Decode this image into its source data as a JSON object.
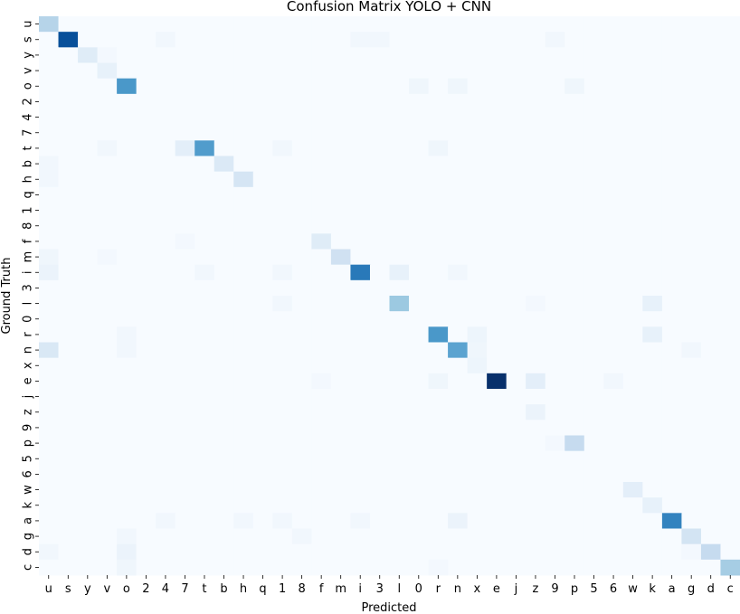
{
  "chart_data": {
    "type": "heatmap",
    "title": "Confusion Matrix YOLO + CNN",
    "xlabel": "Predicted",
    "ylabel": "Ground Truth",
    "labels": [
      "u",
      "s",
      "y",
      "v",
      "o",
      "2",
      "4",
      "7",
      "t",
      "b",
      "h",
      "q",
      "1",
      "8",
      "f",
      "m",
      "i",
      "3",
      "l",
      "0",
      "r",
      "n",
      "x",
      "e",
      "j",
      "z",
      "9",
      "p",
      "5",
      "6",
      "w",
      "k",
      "a",
      "g",
      "d",
      "c"
    ],
    "colormap": "Blues",
    "value_range": [
      0,
      1
    ],
    "colorbar": false,
    "grid": false,
    "colors": {
      "low": "#f7fbff",
      "high": "#08306b"
    },
    "cells": [
      {
        "row": "u",
        "col": "u",
        "v": 0.3
      },
      {
        "row": "s",
        "col": "s",
        "v": 0.88
      },
      {
        "row": "s",
        "col": "4",
        "v": 0.03
      },
      {
        "row": "s",
        "col": "i",
        "v": 0.03
      },
      {
        "row": "s",
        "col": "3",
        "v": 0.03
      },
      {
        "row": "s",
        "col": "9",
        "v": 0.03
      },
      {
        "row": "y",
        "col": "y",
        "v": 0.12
      },
      {
        "row": "y",
        "col": "v",
        "v": 0.02
      },
      {
        "row": "v",
        "col": "v",
        "v": 0.08
      },
      {
        "row": "o",
        "col": "o",
        "v": 0.6
      },
      {
        "row": "o",
        "col": "0",
        "v": 0.04
      },
      {
        "row": "o",
        "col": "n",
        "v": 0.04
      },
      {
        "row": "o",
        "col": "p",
        "v": 0.04
      },
      {
        "row": "t",
        "col": "7",
        "v": 0.1
      },
      {
        "row": "t",
        "col": "t",
        "v": 0.58
      },
      {
        "row": "t",
        "col": "v",
        "v": 0.03
      },
      {
        "row": "t",
        "col": "1",
        "v": 0.03
      },
      {
        "row": "t",
        "col": "r",
        "v": 0.04
      },
      {
        "row": "b",
        "col": "b",
        "v": 0.14
      },
      {
        "row": "b",
        "col": "u",
        "v": 0.03
      },
      {
        "row": "h",
        "col": "h",
        "v": 0.17
      },
      {
        "row": "h",
        "col": "u",
        "v": 0.03
      },
      {
        "row": "f",
        "col": "f",
        "v": 0.12
      },
      {
        "row": "f",
        "col": "7",
        "v": 0.02
      },
      {
        "row": "m",
        "col": "m",
        "v": 0.2
      },
      {
        "row": "m",
        "col": "u",
        "v": 0.04
      },
      {
        "row": "m",
        "col": "v",
        "v": 0.02
      },
      {
        "row": "i",
        "col": "u",
        "v": 0.06
      },
      {
        "row": "i",
        "col": "i",
        "v": 0.72
      },
      {
        "row": "i",
        "col": "l",
        "v": 0.08
      },
      {
        "row": "i",
        "col": "t",
        "v": 0.03
      },
      {
        "row": "i",
        "col": "1",
        "v": 0.03
      },
      {
        "row": "i",
        "col": "n",
        "v": 0.03
      },
      {
        "row": "l",
        "col": "l",
        "v": 0.38
      },
      {
        "row": "l",
        "col": "k",
        "v": 0.08
      },
      {
        "row": "l",
        "col": "1",
        "v": 0.03
      },
      {
        "row": "l",
        "col": "z",
        "v": 0.02
      },
      {
        "row": "r",
        "col": "r",
        "v": 0.6
      },
      {
        "row": "r",
        "col": "x",
        "v": 0.05
      },
      {
        "row": "r",
        "col": "k",
        "v": 0.08
      },
      {
        "row": "r",
        "col": "o",
        "v": 0.03
      },
      {
        "row": "n",
        "col": "u",
        "v": 0.15
      },
      {
        "row": "n",
        "col": "n",
        "v": 0.55
      },
      {
        "row": "n",
        "col": "x",
        "v": 0.04
      },
      {
        "row": "n",
        "col": "o",
        "v": 0.03
      },
      {
        "row": "n",
        "col": "g",
        "v": 0.03
      },
      {
        "row": "x",
        "col": "x",
        "v": 0.05
      },
      {
        "row": "e",
        "col": "e",
        "v": 1.0
      },
      {
        "row": "e",
        "col": "z",
        "v": 0.1
      },
      {
        "row": "e",
        "col": "r",
        "v": 0.04
      },
      {
        "row": "e",
        "col": "6",
        "v": 0.03
      },
      {
        "row": "e",
        "col": "f",
        "v": 0.02
      },
      {
        "row": "z",
        "col": "z",
        "v": 0.06
      },
      {
        "row": "p",
        "col": "p",
        "v": 0.25
      },
      {
        "row": "p",
        "col": "9",
        "v": 0.02
      },
      {
        "row": "w",
        "col": "w",
        "v": 0.1
      },
      {
        "row": "k",
        "col": "k",
        "v": 0.08
      },
      {
        "row": "a",
        "col": "a",
        "v": 0.68
      },
      {
        "row": "a",
        "col": "n",
        "v": 0.06
      },
      {
        "row": "a",
        "col": "4",
        "v": 0.03
      },
      {
        "row": "a",
        "col": "h",
        "v": 0.03
      },
      {
        "row": "a",
        "col": "1",
        "v": 0.03
      },
      {
        "row": "a",
        "col": "i",
        "v": 0.03
      },
      {
        "row": "g",
        "col": "g",
        "v": 0.18
      },
      {
        "row": "g",
        "col": "o",
        "v": 0.03
      },
      {
        "row": "g",
        "col": "8",
        "v": 0.03
      },
      {
        "row": "d",
        "col": "d",
        "v": 0.25
      },
      {
        "row": "d",
        "col": "o",
        "v": 0.06
      },
      {
        "row": "d",
        "col": "u",
        "v": 0.03
      },
      {
        "row": "d",
        "col": "g",
        "v": 0.02
      },
      {
        "row": "c",
        "col": "c",
        "v": 0.35
      },
      {
        "row": "c",
        "col": "o",
        "v": 0.04
      },
      {
        "row": "c",
        "col": "r",
        "v": 0.02
      }
    ]
  }
}
